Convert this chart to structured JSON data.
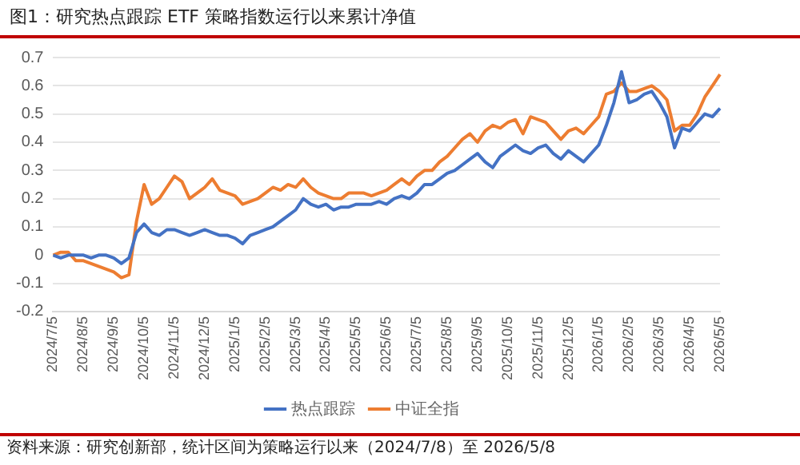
{
  "chart_data": {
    "type": "line",
    "title": "图1：研究热点跟踪 ETF 策略指数运行以来累计净值",
    "categories": [
      "2024/7/5",
      null,
      null,
      null,
      "2024/8/5",
      null,
      null,
      null,
      "2024/9/5",
      null,
      null,
      null,
      "2024/10/5",
      null,
      null,
      null,
      "2024/11/5",
      null,
      null,
      null,
      "2024/12/5",
      null,
      null,
      null,
      "2025/1/5",
      null,
      null,
      null,
      "2025/2/5",
      null,
      null,
      null,
      "2025/3/5",
      null,
      null,
      null,
      "2025/4/5",
      null,
      null,
      null,
      "2025/5/5",
      null,
      null,
      null,
      "2025/6/5",
      null,
      null,
      null,
      "2025/7/5",
      null,
      null,
      null,
      "2025/8/5",
      null,
      null,
      null,
      "2025/9/5",
      null,
      null,
      null,
      "2025/10/5",
      null,
      null,
      null,
      "2025/11/5",
      null,
      null,
      null,
      "2025/12/5",
      null,
      null,
      null,
      "2026/1/5",
      null,
      null,
      null,
      "2026/2/5",
      null,
      null,
      null,
      "2026/3/5",
      null,
      null,
      null,
      "2026/4/5",
      null,
      null,
      null,
      "2026/5/5"
    ],
    "series": [
      {
        "name": "热点跟踪",
        "color": "#4472c4",
        "values": [
          0,
          -0.01,
          0,
          0,
          0,
          -0.01,
          0,
          0,
          -0.01,
          -0.03,
          -0.01,
          0.08,
          0.11,
          0.08,
          0.07,
          0.09,
          0.09,
          0.08,
          0.07,
          0.08,
          0.09,
          0.08,
          0.07,
          0.07,
          0.06,
          0.04,
          0.07,
          0.08,
          0.09,
          0.1,
          0.12,
          0.14,
          0.16,
          0.2,
          0.18,
          0.17,
          0.18,
          0.16,
          0.17,
          0.17,
          0.18,
          0.18,
          0.18,
          0.19,
          0.18,
          0.2,
          0.21,
          0.2,
          0.22,
          0.25,
          0.25,
          0.27,
          0.29,
          0.3,
          0.32,
          0.34,
          0.36,
          0.33,
          0.31,
          0.35,
          0.37,
          0.39,
          0.37,
          0.36,
          0.38,
          0.39,
          0.36,
          0.34,
          0.37,
          0.35,
          0.33,
          0.36,
          0.39,
          0.46,
          0.54,
          0.65,
          0.54,
          0.55,
          0.57,
          0.58,
          0.54,
          0.49,
          0.38,
          0.45,
          0.44,
          0.47,
          0.5,
          0.49,
          0.52
        ]
      },
      {
        "name": "中证全指",
        "color": "#ed7d31",
        "values": [
          0,
          0.01,
          0.01,
          -0.02,
          -0.02,
          -0.03,
          -0.04,
          -0.05,
          -0.06,
          -0.08,
          -0.07,
          0.12,
          0.25,
          0.18,
          0.2,
          0.24,
          0.28,
          0.26,
          0.2,
          0.22,
          0.24,
          0.27,
          0.23,
          0.22,
          0.21,
          0.18,
          0.19,
          0.2,
          0.22,
          0.24,
          0.23,
          0.25,
          0.24,
          0.27,
          0.24,
          0.22,
          0.21,
          0.2,
          0.2,
          0.22,
          0.22,
          0.22,
          0.21,
          0.22,
          0.23,
          0.25,
          0.27,
          0.25,
          0.28,
          0.3,
          0.3,
          0.33,
          0.35,
          0.38,
          0.41,
          0.43,
          0.4,
          0.44,
          0.46,
          0.45,
          0.47,
          0.48,
          0.43,
          0.49,
          0.48,
          0.47,
          0.44,
          0.41,
          0.44,
          0.45,
          0.43,
          0.46,
          0.49,
          0.57,
          0.58,
          0.61,
          0.58,
          0.58,
          0.59,
          0.6,
          0.58,
          0.55,
          0.44,
          0.46,
          0.46,
          0.5,
          0.56,
          0.6,
          0.64
        ]
      }
    ],
    "ylim": [
      -0.2,
      0.7
    ],
    "yticks": [
      -0.2,
      -0.1,
      0,
      0.1,
      0.2,
      0.3,
      0.4,
      0.5,
      0.6,
      0.7
    ],
    "grid": "y",
    "legend": "bottom",
    "marker": "none",
    "line_style": "solid",
    "annotations": [
      "资料来源：研究创新部，统计区间为策略运行以来（2024/7/8）至 2026/5/8"
    ]
  }
}
